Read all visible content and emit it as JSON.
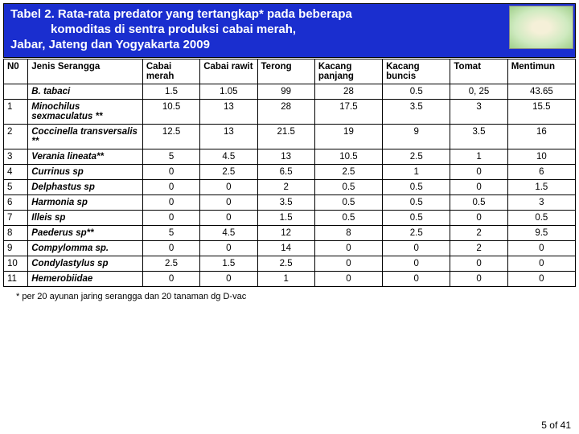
{
  "title_lines": [
    "Tabel 2. Rata-rata predator yang tertangkap* pada beberapa",
    "            komoditas di sentra produksi cabai merah,",
    "Jabar, Jateng dan Yogyakarta 2009"
  ],
  "columns": [
    "N0",
    "Jenis Serangga",
    "Cabai merah",
    "Cabai rawit",
    "Terong",
    "Kacang panjang",
    "Kacang buncis",
    "Tomat",
    "Mentimun"
  ],
  "rows": [
    {
      "no": "",
      "name": "B. tabaci",
      "vals": [
        "1.5",
        "1.05",
        "99",
        "28",
        "0.5",
        "0, 25",
        "43.65"
      ]
    },
    {
      "no": "1",
      "name": "Minochilus sexmaculatus **",
      "vals": [
        "10.5",
        "13",
        "28",
        "17.5",
        "3.5",
        "3",
        "15.5"
      ]
    },
    {
      "no": "2",
      "name": "Coccinella transversalis **",
      "vals": [
        "12.5",
        "13",
        "21.5",
        "19",
        "9",
        "3.5",
        "16"
      ]
    },
    {
      "no": "3",
      "name": "Verania lineata**",
      "vals": [
        "5",
        "4.5",
        "13",
        "10.5",
        "2.5",
        "1",
        "10"
      ]
    },
    {
      "no": "4",
      "name": "Currinus sp",
      "vals": [
        "0",
        "2.5",
        "6.5",
        "2.5",
        "1",
        "0",
        "6"
      ]
    },
    {
      "no": "5",
      "name": "Delphastus sp",
      "vals": [
        "0",
        "0",
        "2",
        "0.5",
        "0.5",
        "0",
        "1.5"
      ]
    },
    {
      "no": "6",
      "name": "Harmonia sp",
      "vals": [
        "0",
        "0",
        "3.5",
        "0.5",
        "0.5",
        "0.5",
        "3"
      ]
    },
    {
      "no": "7",
      "name": "Illeis sp",
      "vals": [
        "0",
        "0",
        "1.5",
        "0.5",
        "0.5",
        "0",
        "0.5"
      ]
    },
    {
      "no": "8",
      "name": "Paederus sp**",
      "vals": [
        "5",
        "4.5",
        "12",
        "8",
        "2.5",
        "2",
        "9.5"
      ]
    },
    {
      "no": "9",
      "name": "Compylomma sp.",
      "vals": [
        "0",
        "0",
        "14",
        "0",
        "0",
        "2",
        "0"
      ]
    },
    {
      "no": "10",
      "name": "Condylastylus sp",
      "vals": [
        "2.5",
        "1.5",
        "2.5",
        "0",
        "0",
        "0",
        "0"
      ]
    },
    {
      "no": "11",
      "name": "Hemerobiidae",
      "vals": [
        "0",
        "0",
        "1",
        "0",
        "0",
        "0",
        "0"
      ]
    }
  ],
  "footnote": "* per 20 ayunan jaring serangga dan 20 tanaman dg D-vac",
  "page_num": "5 of 41",
  "colors": {
    "banner_bg": "#1a2ecf",
    "banner_text": "#ffffff",
    "border": "#000000",
    "cell_bg": "#ffffff"
  }
}
